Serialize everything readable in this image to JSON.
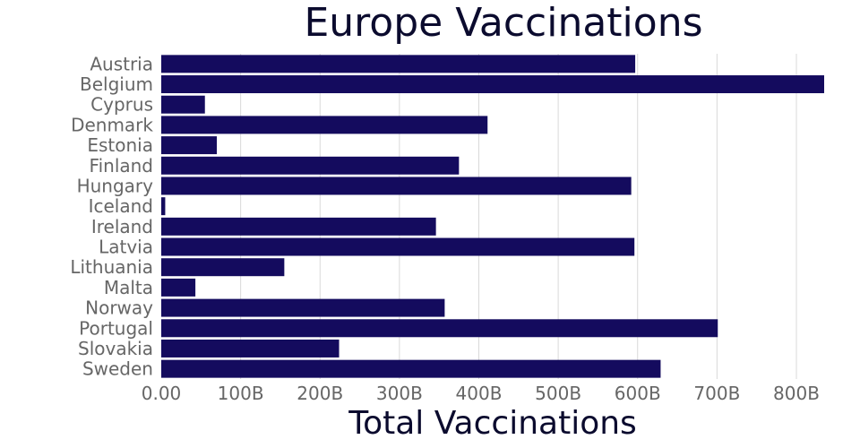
{
  "chart_data": {
    "type": "bar",
    "orientation": "horizontal",
    "title": "Europe Vaccinations",
    "xlabel": "Total Vaccinations",
    "ylabel": "",
    "xlim": [
      0,
      835
    ],
    "x_ticks": [
      0,
      100,
      200,
      300,
      400,
      500,
      600,
      700,
      800
    ],
    "x_tick_labels": [
      "0.00",
      "100B",
      "200B",
      "300B",
      "400B",
      "500B",
      "600B",
      "700B",
      "800B"
    ],
    "grid": true,
    "bar_color": "#140b5e",
    "categories": [
      "Austria",
      "Belgium",
      "Cyprus",
      "Denmark",
      "Estonia",
      "Finland",
      "Hungary",
      "Iceland",
      "Ireland",
      "Latvia",
      "Lithuania",
      "Malta",
      "Norway",
      "Portugal",
      "Slovakia",
      "Sweden"
    ],
    "values": [
      597,
      835,
      55,
      411,
      70,
      375,
      592,
      5,
      346,
      596,
      155,
      43,
      357,
      701,
      224,
      629
    ],
    "value_unit": "B"
  }
}
